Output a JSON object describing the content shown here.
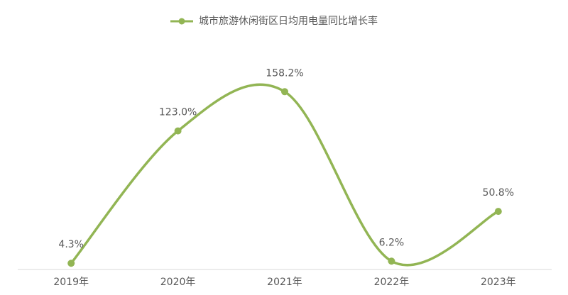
{
  "chart_data": {
    "type": "line",
    "smooth": true,
    "categories": [
      "2019年",
      "2020年",
      "2021年",
      "2022年",
      "2023年"
    ],
    "series": [
      {
        "name": "城市旅游休闲街区日均用电量同比增长率",
        "color": "#92b554",
        "values": [
          4.3,
          123.0,
          158.2,
          6.2,
          50.8
        ],
        "value_labels": [
          "4.3%",
          "123.0%",
          "158.2%",
          "6.2%",
          "50.8%"
        ]
      }
    ],
    "legend": "top"
  }
}
